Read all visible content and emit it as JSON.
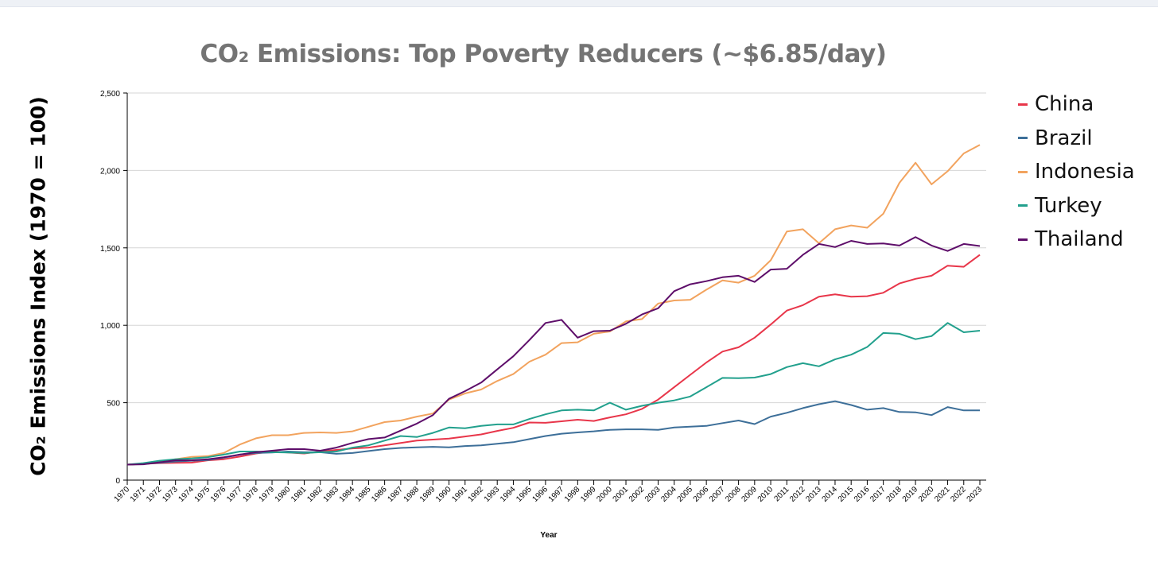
{
  "chart_data": {
    "type": "line",
    "title": "CO₂ Emissions: Top Poverty Reducers (~$6.85/day)",
    "xlabel": "Year",
    "ylabel": "CO₂ Emissions Index (1970 = 100)",
    "ylim": [
      0,
      2500
    ],
    "yticks": [
      "0",
      "500",
      "1,000",
      "1,500",
      "2,000",
      "2,500"
    ],
    "ytick_values": [
      0,
      500,
      1000,
      1500,
      2000,
      2500
    ],
    "grid": true,
    "legend_position": "right",
    "x": [
      1970,
      1971,
      1972,
      1973,
      1974,
      1975,
      1976,
      1977,
      1978,
      1979,
      1980,
      1981,
      1982,
      1983,
      1984,
      1985,
      1986,
      1987,
      1988,
      1989,
      1990,
      1991,
      1992,
      1993,
      1994,
      1995,
      1996,
      1997,
      1998,
      1999,
      2000,
      2001,
      2002,
      2003,
      2004,
      2005,
      2006,
      2007,
      2008,
      2009,
      2010,
      2011,
      2012,
      2013,
      2014,
      2015,
      2016,
      2017,
      2018,
      2019,
      2020,
      2021,
      2022,
      2023
    ],
    "series": [
      {
        "name": "China",
        "color": "#e8364a",
        "values": [
          100,
          105,
          110,
          112,
          113,
          128,
          135,
          152,
          172,
          185,
          178,
          172,
          185,
          195,
          205,
          210,
          225,
          240,
          255,
          262,
          268,
          282,
          295,
          318,
          338,
          372,
          370,
          380,
          390,
          382,
          405,
          425,
          460,
          520,
          600,
          680,
          760,
          830,
          858,
          920,
          1005,
          1095,
          1130,
          1185,
          1200,
          1185,
          1188,
          1210,
          1270,
          1300,
          1320,
          1385,
          1378,
          1455
        ]
      },
      {
        "name": "Brazil",
        "color": "#3d6f99",
        "values": [
          100,
          105,
          112,
          120,
          125,
          130,
          145,
          165,
          175,
          178,
          185,
          180,
          180,
          170,
          175,
          188,
          200,
          208,
          212,
          215,
          212,
          220,
          225,
          235,
          245,
          265,
          285,
          300,
          308,
          315,
          325,
          328,
          328,
          325,
          340,
          345,
          350,
          368,
          385,
          362,
          410,
          435,
          465,
          490,
          510,
          485,
          455,
          465,
          440,
          438,
          420,
          472,
          450,
          450
        ]
      },
      {
        "name": "Indonesia",
        "color": "#f2a35e",
        "values": [
          100,
          105,
          120,
          135,
          150,
          155,
          175,
          230,
          270,
          290,
          290,
          305,
          308,
          305,
          315,
          345,
          375,
          385,
          410,
          430,
          520,
          560,
          585,
          640,
          685,
          765,
          810,
          885,
          890,
          945,
          960,
          1025,
          1040,
          1140,
          1160,
          1165,
          1230,
          1290,
          1275,
          1320,
          1420,
          1605,
          1620,
          1530,
          1620,
          1645,
          1630,
          1720,
          1920,
          2050,
          1910,
          1995,
          2110,
          2165
        ]
      },
      {
        "name": "Turkey",
        "color": "#22a08d",
        "values": [
          100,
          110,
          125,
          135,
          140,
          148,
          165,
          185,
          185,
          180,
          178,
          175,
          180,
          185,
          210,
          225,
          255,
          285,
          278,
          305,
          340,
          335,
          350,
          360,
          360,
          395,
          425,
          450,
          455,
          450,
          500,
          455,
          480,
          500,
          515,
          540,
          600,
          660,
          658,
          662,
          685,
          730,
          755,
          735,
          780,
          810,
          860,
          950,
          945,
          910,
          930,
          1015,
          955,
          965
        ]
      },
      {
        "name": "Thailand",
        "color": "#5e0e6a",
        "values": [
          100,
          102,
          115,
          128,
          128,
          135,
          148,
          165,
          180,
          190,
          200,
          200,
          190,
          210,
          240,
          265,
          275,
          320,
          365,
          420,
          525,
          575,
          630,
          715,
          800,
          905,
          1015,
          1035,
          920,
          962,
          965,
          1010,
          1070,
          1110,
          1220,
          1265,
          1285,
          1310,
          1320,
          1280,
          1360,
          1365,
          1455,
          1525,
          1505,
          1545,
          1525,
          1528,
          1515,
          1570,
          1515,
          1480,
          1525,
          1512
        ]
      }
    ]
  }
}
